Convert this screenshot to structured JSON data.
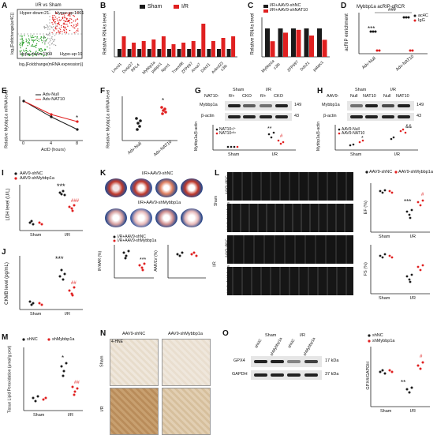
{
  "panels": {
    "A": {
      "label": "A",
      "title": "I/R vs Sham",
      "hyper_down": "Hyper-down:21",
      "hyper_up": "Hyper-up:1061",
      "hypo_down": "Hypo-down:1109",
      "hypo_up": "Hypo-up:19",
      "xlabel": "log₂[Foldchange(mRNA expression)]",
      "ylabel": "log₂[Foldchange(ac4C)]"
    },
    "B": {
      "label": "B",
      "legend": [
        "Sham",
        "I/R"
      ],
      "ylabel": "Relative RNAs level",
      "ymax": "6",
      "genes": [
        "Lmod1",
        "Dusp27",
        "RPL4",
        "Mybbp1a",
        "pabpc1",
        "Npm1",
        "Tnem88",
        "ZFP697",
        "Anxa7",
        "Ddx21",
        "Ankrd23",
        "c3ib"
      ]
    },
    "C": {
      "label": "C",
      "legend": [
        "I/R+AAV9-shNC",
        "I/R+AAV9-shNAT10"
      ],
      "ylabel": "Relative RNAs level",
      "genes": [
        "Mybbp1a",
        "c3ib",
        "ZFP697",
        "Ddx21",
        "pabpc1"
      ]
    },
    "D": {
      "label": "D",
      "title": "Mybbp1a acRIP-qRCR",
      "legend": [
        "ac4C",
        "IgG"
      ],
      "ylabel": "acRIP enrichment",
      "xcats": [
        "Adv-Null",
        "Adv-NAT10"
      ],
      "sig": "###",
      "sig2": "***"
    },
    "E": {
      "label": "E",
      "legend": [
        "Adv-Null",
        "Adv-NAT10"
      ],
      "ylabel": "Relative Mybbp1a mRNA level",
      "xlabel": "ActD (hours)",
      "xticks": [
        "0",
        "4",
        "8"
      ],
      "sig": "*"
    },
    "F": {
      "label": "F",
      "ylabel": "Relative Mybbp1a mRNA level",
      "xcats": [
        "Adv-Null",
        "Adv-NAT10"
      ],
      "sig": "*"
    },
    "G": {
      "label": "G",
      "header": "NAT10-",
      "groups": [
        "Sham",
        "I/R"
      ],
      "lanes": [
        "fl/+",
        "CKO",
        "fl/+",
        "CKO"
      ],
      "proteins": [
        "Mybbp1a",
        "β-actin"
      ],
      "kda": [
        "149",
        "43"
      ],
      "ylabel": "Mybbp1a/β-actin",
      "legend": [
        "NAT10ⁿ/⁺",
        "NAT10ᶜᴷᵒ"
      ],
      "xcats": [
        "Sham",
        "I/R"
      ],
      "sig": "**",
      "sig2": "#"
    },
    "H": {
      "label": "H",
      "header": "AAV9-",
      "groups": [
        "Sham",
        "I/R"
      ],
      "lanes": [
        "Null",
        "NAT10",
        "Null",
        "NAT10"
      ],
      "proteins": [
        "Mybbp1a",
        "β-actin"
      ],
      "kda": [
        "149",
        "43"
      ],
      "ylabel": "Mybbp1a/β-actin",
      "legend": [
        "AAV9-Null",
        "AAV9-NAT10"
      ],
      "xcats": [
        "Sham",
        "I/R"
      ],
      "sig": "*",
      "sig2": "&&"
    },
    "I": {
      "label": "I",
      "legend": [
        "AAV9-shNC",
        "AAV9-shMybbp1a"
      ],
      "ylabel": "LDH level (U/L)",
      "xcats": [
        "Sham",
        "I/R"
      ],
      "sig": "***",
      "sig2": "###"
    },
    "J": {
      "label": "J",
      "ylabel": "CKMB level (pg/mL)",
      "xcats": [
        "Sham",
        "I/R"
      ],
      "sig": "***",
      "sig2": "##"
    },
    "K": {
      "label": "K",
      "img1": "I/R+AAV9-shNC",
      "img2": "I/R+AAV9-shMybbp1a",
      "legend": [
        "I/R+AAV9-shNC",
        "I/R+AAV9-shMybbp1a"
      ],
      "ylabel1": "IF/AAR (%)",
      "ylabel2": "AAR/LV (%)",
      "sig": "***"
    },
    "L": {
      "label": "L",
      "rows": [
        "AAV9-shNC",
        "AAV9-shMybbp1a",
        "AAV9-shNC",
        "AAV9-shMybbp1a"
      ],
      "groups": [
        "Sham",
        "I/R"
      ],
      "legend": [
        "AAV9-shNC",
        "AAV9-shMybbp1a"
      ],
      "ylabel_ef": "EF (%)",
      "ylabel_fs": "FS (%)",
      "xcats": [
        "Sham",
        "I/R"
      ],
      "sig": "***",
      "sig2": "#"
    },
    "M": {
      "label": "M",
      "legend": [
        "shNC",
        "shMybbp1a"
      ],
      "ylabel": "Tissue Lipid Peroxidation (μmol/g prot)",
      "xcats": [
        "Sham",
        "I/R"
      ],
      "sig": "*",
      "sig2": "##"
    },
    "N": {
      "label": "N",
      "cols": [
        "AAV9-shNC",
        "AAV9-shMybbp1a"
      ],
      "rows": [
        "Sham",
        "I/R"
      ],
      "stain": "4-HNE"
    },
    "O": {
      "label": "O",
      "groups": [
        "Sham",
        "I/R"
      ],
      "lanes": [
        "shNC",
        "shMybbp1a",
        "shNC",
        "shMybbp1a"
      ],
      "proteins": [
        "GPX4",
        "GAPDH"
      ],
      "kda": [
        "17 kDa",
        "37 kDa"
      ],
      "legend": [
        "shNC",
        "shMybbp1a"
      ],
      "ylabel": "GPX4/GAPDH",
      "xcats": [
        "Sham",
        "I/R"
      ],
      "sig": "**",
      "sig2": "#"
    }
  },
  "colors": {
    "black": "#1a1a1a",
    "red": "#e02020",
    "green": "#2ca02c"
  }
}
